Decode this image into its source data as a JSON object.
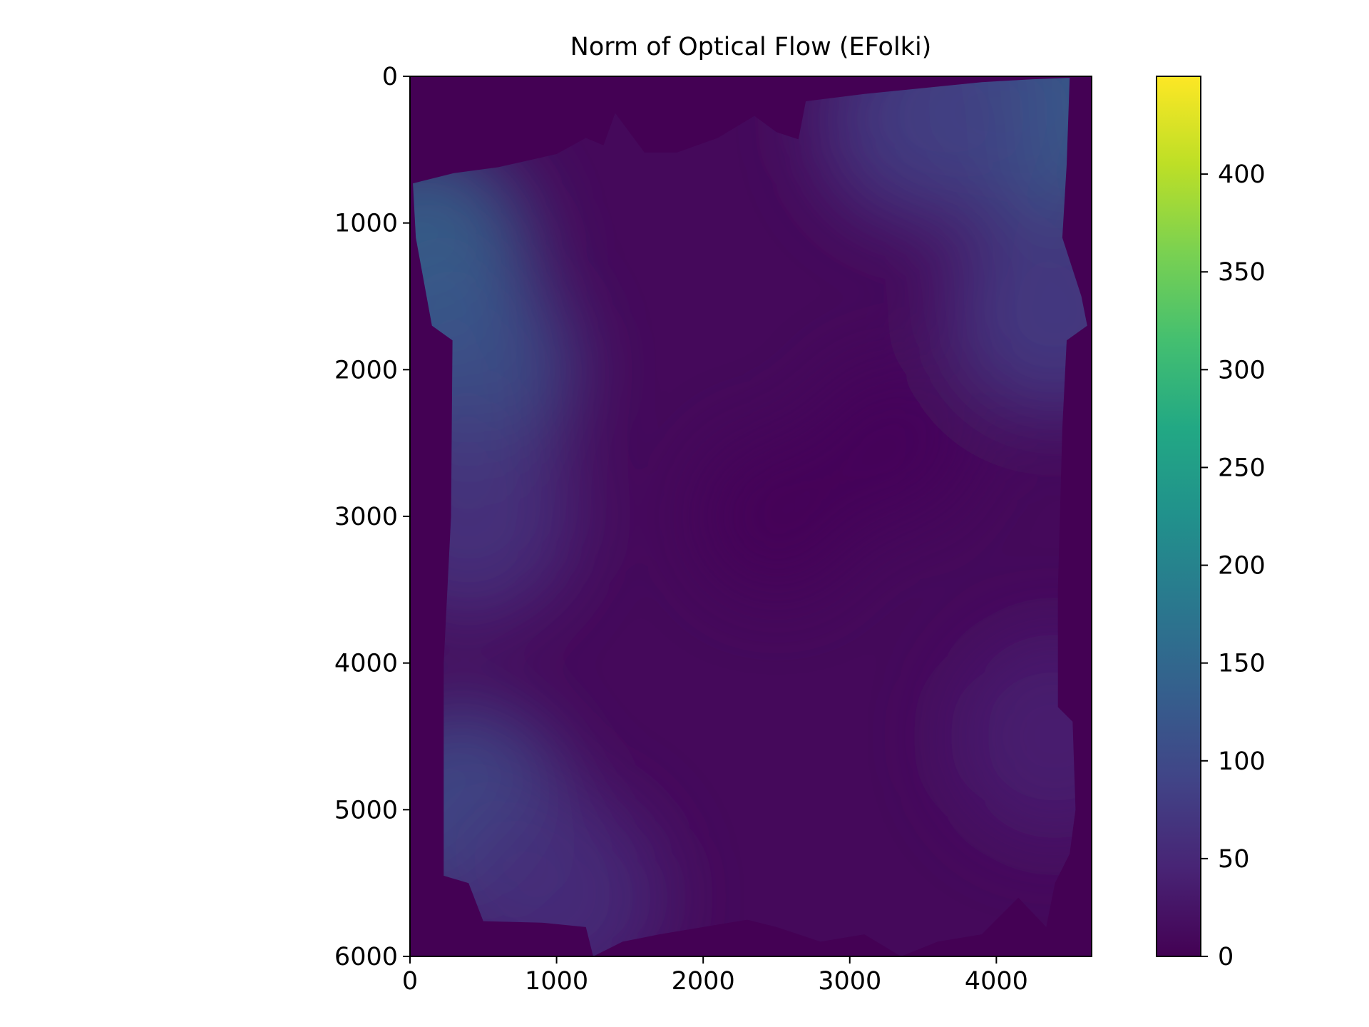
{
  "chart_data": {
    "type": "heatmap",
    "title": "Norm of Optical Flow (EFolki)",
    "xlabel": "",
    "ylabel": "",
    "x_ticks": [
      0,
      1000,
      2000,
      3000,
      4000
    ],
    "y_ticks": [
      0,
      1000,
      2000,
      3000,
      4000,
      5000,
      6000
    ],
    "xlim": [
      0,
      4650
    ],
    "ylim": [
      6000,
      0
    ],
    "colorbar": {
      "colormap": "viridis",
      "range": [
        0,
        450
      ],
      "ticks": [
        0,
        50,
        100,
        150,
        200,
        250,
        300,
        350,
        400
      ]
    },
    "background_value": 0,
    "valid_region": {
      "outline": [
        [
          20,
          730
        ],
        [
          300,
          660
        ],
        [
          600,
          620
        ],
        [
          1000,
          530
        ],
        [
          1200,
          420
        ],
        [
          1320,
          470
        ],
        [
          1400,
          250
        ],
        [
          1600,
          520
        ],
        [
          1820,
          520
        ],
        [
          2100,
          420
        ],
        [
          2350,
          270
        ],
        [
          2500,
          380
        ],
        [
          2650,
          430
        ],
        [
          2700,
          170
        ],
        [
          3100,
          120
        ],
        [
          3500,
          80
        ],
        [
          3900,
          40
        ],
        [
          4250,
          20
        ],
        [
          4500,
          10
        ],
        [
          4480,
          600
        ],
        [
          4450,
          1100
        ],
        [
          4580,
          1500
        ],
        [
          4620,
          1700
        ],
        [
          4480,
          1800
        ],
        [
          4450,
          2400
        ],
        [
          4420,
          3500
        ],
        [
          4420,
          4300
        ],
        [
          4520,
          4400
        ],
        [
          4540,
          5000
        ],
        [
          4500,
          5300
        ],
        [
          4400,
          5500
        ],
        [
          4340,
          5800
        ],
        [
          4150,
          5600
        ],
        [
          3900,
          5850
        ],
        [
          3600,
          5900
        ],
        [
          3350,
          6000
        ],
        [
          3100,
          5850
        ],
        [
          2800,
          5900
        ],
        [
          2500,
          5800
        ],
        [
          2300,
          5750
        ],
        [
          2000,
          5800
        ],
        [
          1700,
          5850
        ],
        [
          1450,
          5900
        ],
        [
          1250,
          6000
        ],
        [
          1200,
          5800
        ],
        [
          900,
          5770
        ],
        [
          500,
          5760
        ],
        [
          400,
          5500
        ],
        [
          230,
          5450
        ],
        [
          230,
          4000
        ],
        [
          280,
          3000
        ],
        [
          290,
          1800
        ],
        [
          150,
          1700
        ],
        [
          40,
          1100
        ]
      ]
    },
    "flow_norm_samples": [
      {
        "x": 4400,
        "y": 200,
        "value": 155
      },
      {
        "x": 4000,
        "y": 200,
        "value": 120
      },
      {
        "x": 3500,
        "y": 300,
        "value": 80
      },
      {
        "x": 100,
        "y": 1200,
        "value": 150
      },
      {
        "x": 400,
        "y": 2000,
        "value": 120
      },
      {
        "x": 400,
        "y": 3000,
        "value": 70
      },
      {
        "x": 350,
        "y": 5000,
        "value": 110
      },
      {
        "x": 1000,
        "y": 5600,
        "value": 60
      },
      {
        "x": 4400,
        "y": 1600,
        "value": 85
      },
      {
        "x": 4400,
        "y": 4500,
        "value": 40
      },
      {
        "x": 2500,
        "y": 3000,
        "value": 5
      },
      {
        "x": 3300,
        "y": 2500,
        "value": 8
      }
    ]
  }
}
